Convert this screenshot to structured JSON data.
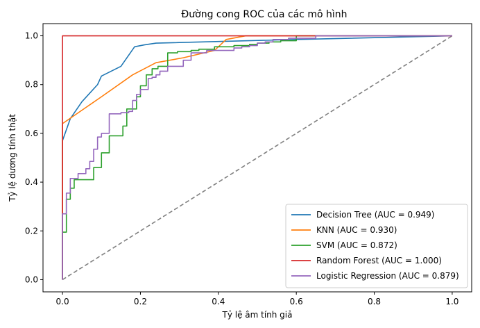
{
  "chart_data": {
    "type": "line",
    "title": "Đường cong ROC của các mô hình",
    "xlabel": "Tỷ lệ âm tính giả",
    "ylabel": "Tỷ lệ dương tính thật",
    "xlim": [
      -0.05,
      1.05
    ],
    "ylim": [
      -0.05,
      1.05
    ],
    "xticks": [
      "0.0",
      "0.2",
      "0.4",
      "0.6",
      "0.8",
      "1.0"
    ],
    "yticks": [
      "0.0",
      "0.2",
      "0.4",
      "0.6",
      "0.8",
      "1.0"
    ],
    "grid": false,
    "legend_position": "bottom-right",
    "series": [
      {
        "name": "Decision Tree (AUC = 0.949)",
        "color": "#1f77b4",
        "style": "solid",
        "x": [
          0,
          0,
          0.02,
          0.05,
          0.09,
          0.1,
          0.15,
          0.185,
          0.21,
          0.24,
          0.6,
          1.0
        ],
        "y": [
          0,
          0.57,
          0.66,
          0.73,
          0.8,
          0.835,
          0.875,
          0.955,
          0.963,
          0.97,
          0.985,
          1.0
        ]
      },
      {
        "name": "KNN (AUC = 0.930)",
        "color": "#ff7f0e",
        "style": "solid",
        "x": [
          0,
          0,
          0.1,
          0.18,
          0.24,
          0.31,
          0.39,
          0.42,
          0.47,
          1.0
        ],
        "y": [
          0,
          0.64,
          0.75,
          0.84,
          0.89,
          0.91,
          0.94,
          0.985,
          1.0,
          1.0
        ]
      },
      {
        "name": "SVM (AUC = 0.872)",
        "color": "#2ca02c",
        "style": "step",
        "x": [
          0,
          0,
          0.01,
          0.01,
          0.02,
          0.02,
          0.03,
          0.03,
          0.08,
          0.08,
          0.1,
          0.1,
          0.12,
          0.12,
          0.155,
          0.155,
          0.165,
          0.165,
          0.19,
          0.19,
          0.2,
          0.2,
          0.215,
          0.215,
          0.23,
          0.23,
          0.245,
          0.245,
          0.27,
          0.27,
          0.295,
          0.295,
          0.33,
          0.33,
          0.35,
          0.35,
          0.39,
          0.39,
          0.44,
          0.44,
          0.48,
          0.48,
          0.5,
          0.5,
          0.53,
          0.53,
          0.56,
          0.56,
          0.6,
          0.6,
          1.0
        ],
        "y": [
          0,
          0.195,
          0.195,
          0.33,
          0.33,
          0.375,
          0.375,
          0.41,
          0.41,
          0.46,
          0.46,
          0.52,
          0.52,
          0.59,
          0.59,
          0.63,
          0.63,
          0.7,
          0.7,
          0.75,
          0.75,
          0.795,
          0.795,
          0.84,
          0.84,
          0.865,
          0.865,
          0.875,
          0.875,
          0.93,
          0.93,
          0.935,
          0.935,
          0.94,
          0.94,
          0.945,
          0.945,
          0.955,
          0.955,
          0.96,
          0.96,
          0.965,
          0.965,
          0.97,
          0.97,
          0.975,
          0.975,
          0.98,
          0.98,
          1.0,
          1.0
        ]
      },
      {
        "name": "Random Forest (AUC = 1.000)",
        "color": "#d62728",
        "style": "solid",
        "x": [
          0,
          0,
          1.0
        ],
        "y": [
          0,
          1.0,
          1.0
        ]
      },
      {
        "name": "Logistic Regression (AUC = 0.879)",
        "color": "#9467bd",
        "style": "step",
        "x": [
          0,
          0,
          0.01,
          0.01,
          0.02,
          0.02,
          0.04,
          0.04,
          0.06,
          0.06,
          0.07,
          0.07,
          0.08,
          0.08,
          0.09,
          0.09,
          0.1,
          0.1,
          0.12,
          0.12,
          0.15,
          0.15,
          0.17,
          0.17,
          0.18,
          0.18,
          0.19,
          0.19,
          0.2,
          0.2,
          0.22,
          0.22,
          0.23,
          0.23,
          0.24,
          0.24,
          0.25,
          0.25,
          0.27,
          0.27,
          0.31,
          0.31,
          0.33,
          0.33,
          0.37,
          0.37,
          0.44,
          0.44,
          0.46,
          0.46,
          0.48,
          0.48,
          0.5,
          0.5,
          0.52,
          0.52,
          0.54,
          0.54,
          0.58,
          0.58,
          0.65,
          0.65,
          1.0
        ],
        "y": [
          0,
          0.27,
          0.27,
          0.355,
          0.355,
          0.415,
          0.415,
          0.435,
          0.435,
          0.455,
          0.455,
          0.485,
          0.485,
          0.535,
          0.535,
          0.585,
          0.585,
          0.6,
          0.6,
          0.68,
          0.68,
          0.685,
          0.685,
          0.69,
          0.69,
          0.735,
          0.735,
          0.76,
          0.76,
          0.78,
          0.78,
          0.825,
          0.825,
          0.83,
          0.83,
          0.84,
          0.84,
          0.855,
          0.855,
          0.875,
          0.875,
          0.9,
          0.9,
          0.93,
          0.93,
          0.94,
          0.94,
          0.95,
          0.95,
          0.955,
          0.955,
          0.96,
          0.96,
          0.97,
          0.97,
          0.975,
          0.975,
          0.985,
          0.985,
          0.99,
          0.99,
          1.0,
          1.0
        ]
      }
    ],
    "reference_line": {
      "color": "#808080",
      "style": "dashed",
      "x": [
        0,
        1.0
      ],
      "y": [
        0,
        1.0
      ]
    }
  }
}
